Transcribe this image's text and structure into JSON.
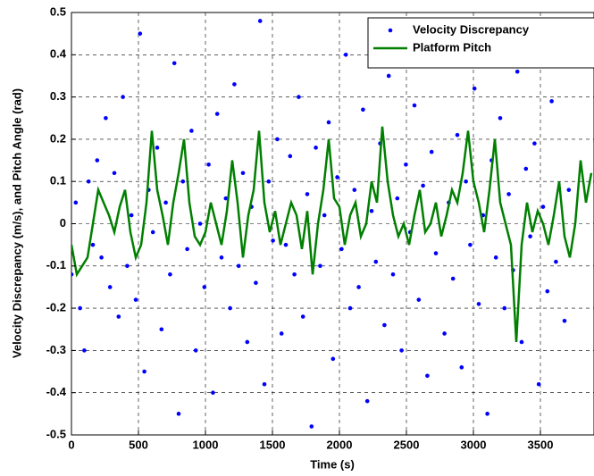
{
  "chart_data": {
    "type": "scatter-line",
    "xlabel": "Time (s)",
    "ylabel": "Velocity Discrepancy (m/s), and Pitch Angle (rad)",
    "xlim": [
      0,
      3900
    ],
    "ylim": [
      -0.5,
      0.5
    ],
    "xticks": [
      0,
      500,
      1000,
      1500,
      2000,
      2500,
      3000,
      3500
    ],
    "yticks": [
      -0.5,
      -0.4,
      -0.3,
      -0.2,
      -0.1,
      0,
      0.1,
      0.2,
      0.3,
      0.4,
      0.5
    ],
    "grid": true,
    "legend": "upper right",
    "series": [
      {
        "name": "Velocity Discrepancy",
        "color": "#0000ff",
        "kind": "points",
        "x": [
          0,
          32,
          64,
          96,
          128,
          160,
          192,
          224,
          256,
          288,
          320,
          352,
          384,
          416,
          448,
          480,
          512,
          544,
          576,
          608,
          640,
          672,
          704,
          736,
          768,
          800,
          832,
          864,
          896,
          928,
          960,
          992,
          1024,
          1056,
          1088,
          1120,
          1152,
          1184,
          1216,
          1248,
          1280,
          1312,
          1344,
          1376,
          1408,
          1440,
          1472,
          1504,
          1536,
          1568,
          1600,
          1632,
          1664,
          1696,
          1728,
          1760,
          1792,
          1824,
          1856,
          1888,
          1920,
          1952,
          1984,
          2016,
          2048,
          2080,
          2112,
          2144,
          2176,
          2208,
          2240,
          2272,
          2304,
          2336,
          2368,
          2400,
          2432,
          2464,
          2496,
          2528,
          2560,
          2592,
          2624,
          2656,
          2688,
          2720,
          2752,
          2784,
          2816,
          2848,
          2880,
          2912,
          2944,
          2976,
          3008,
          3040,
          3072,
          3104,
          3136,
          3168,
          3200,
          3232,
          3264,
          3296,
          3328,
          3360,
          3392,
          3424,
          3456,
          3488,
          3520,
          3552,
          3584,
          3616,
          3648,
          3680,
          3712
        ],
        "values": [
          -0.12,
          0.05,
          -0.2,
          -0.3,
          0.1,
          -0.05,
          0.15,
          -0.08,
          0.25,
          -0.15,
          0.12,
          -0.22,
          0.3,
          -0.1,
          0.02,
          -0.18,
          0.45,
          -0.35,
          0.08,
          -0.02,
          0.18,
          -0.25,
          0.05,
          -0.12,
          0.38,
          -0.45,
          0.1,
          -0.06,
          0.22,
          -0.3,
          0,
          -0.15,
          0.14,
          -0.4,
          0.26,
          -0.08,
          0.06,
          -0.2,
          0.33,
          -0.1,
          0.12,
          -0.28,
          0.04,
          -0.14,
          0.48,
          -0.38,
          0.1,
          -0.04,
          0.2,
          -0.26,
          -0.05,
          0.16,
          -0.12,
          0.3,
          -0.22,
          0.07,
          -0.48,
          0.18,
          -0.1,
          0.02,
          0.24,
          -0.32,
          0.11,
          -0.06,
          0.4,
          -0.2,
          0.08,
          -0.15,
          0.27,
          -0.42,
          0.03,
          -0.09,
          0.19,
          -0.24,
          0.35,
          -0.12,
          0.06,
          -0.3,
          0.14,
          -0.02,
          0.28,
          -0.18,
          0.09,
          -0.36,
          0.17,
          -0.07,
          0.44,
          -0.26,
          0.05,
          -0.13,
          0.21,
          -0.34,
          0.1,
          -0.05,
          0.32,
          -0.19,
          0.02,
          -0.45,
          0.15,
          -0.08,
          0.25,
          -0.2,
          0.07,
          -0.11,
          0.36,
          -0.28,
          0.13,
          -0.03,
          0.19,
          -0.38,
          0.04,
          -0.16,
          0.29,
          -0.09,
          0.47,
          -0.23,
          0.08
        ]
      },
      {
        "name": "Platform Pitch",
        "color": "#007f00",
        "kind": "line",
        "x": [
          0,
          40,
          80,
          120,
          160,
          200,
          240,
          280,
          320,
          360,
          400,
          440,
          480,
          520,
          560,
          600,
          640,
          680,
          720,
          760,
          800,
          840,
          880,
          920,
          960,
          1000,
          1040,
          1080,
          1120,
          1160,
          1200,
          1240,
          1280,
          1320,
          1360,
          1400,
          1440,
          1480,
          1520,
          1560,
          1600,
          1640,
          1680,
          1720,
          1760,
          1800,
          1840,
          1880,
          1920,
          1960,
          2000,
          2040,
          2080,
          2120,
          2160,
          2200,
          2240,
          2280,
          2320,
          2360,
          2400,
          2440,
          2480,
          2520,
          2560,
          2600,
          2640,
          2680,
          2720,
          2760,
          2800,
          2840,
          2880,
          2920,
          2960,
          3000,
          3040,
          3080,
          3120,
          3160,
          3200,
          3240,
          3280,
          3320,
          3360,
          3400,
          3440,
          3480,
          3520,
          3560,
          3600,
          3640,
          3680,
          3720,
          3760,
          3800,
          3840,
          3880
        ],
        "values": [
          -0.05,
          -0.12,
          -0.1,
          -0.08,
          0,
          0.08,
          0.05,
          0.02,
          -0.02,
          0.04,
          0.08,
          -0.02,
          -0.08,
          -0.05,
          0.05,
          0.22,
          0.08,
          0.02,
          -0.05,
          0.05,
          0.12,
          0.2,
          0.05,
          -0.03,
          -0.05,
          -0.02,
          0.05,
          0,
          -0.05,
          0.03,
          0.15,
          0.05,
          -0.08,
          0.02,
          0.08,
          0.22,
          0.05,
          -0.02,
          0.03,
          -0.05,
          0,
          0.05,
          0.02,
          -0.06,
          0.03,
          -0.12,
          0,
          0.08,
          0.2,
          0.06,
          0.04,
          -0.05,
          0.02,
          0.05,
          -0.03,
          0,
          0.1,
          0.05,
          0.23,
          0.1,
          0.02,
          -0.03,
          0,
          -0.05,
          0.02,
          0.08,
          -0.02,
          0,
          0.05,
          -0.03,
          0.02,
          0.08,
          0.05,
          0.12,
          0.22,
          0.1,
          0.05,
          -0.02,
          0.08,
          0.2,
          0.05,
          0,
          -0.05,
          -0.28,
          -0.05,
          0.05,
          -0.02,
          0.03,
          0,
          -0.05,
          0.02,
          0.1,
          -0.03,
          -0.08,
          0,
          0.15,
          0.05,
          0.12
        ]
      }
    ]
  }
}
